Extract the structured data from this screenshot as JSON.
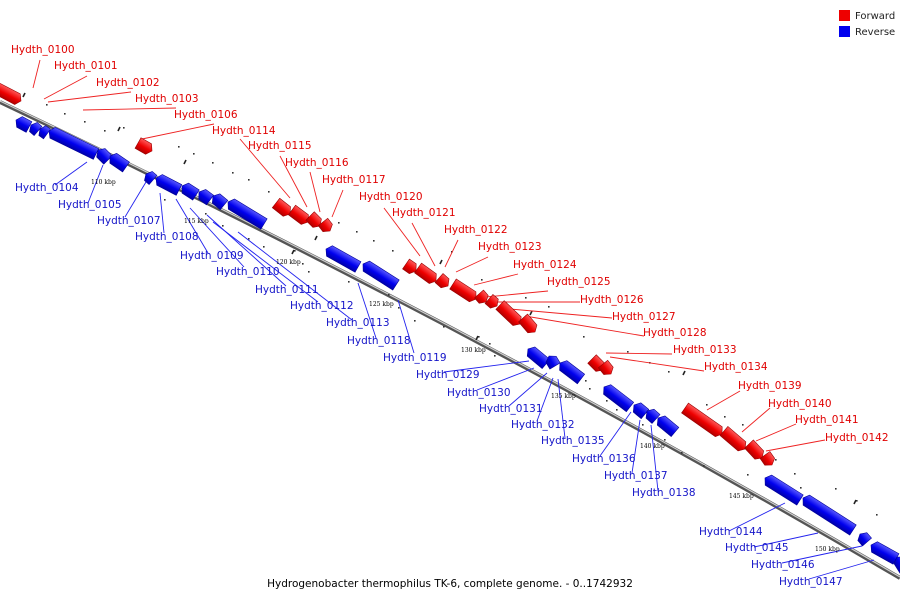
{
  "caption": "Hydrogenobacter thermophilus TK-6, complete genome. - 0..1742932",
  "legend": [
    {
      "label": "Forward",
      "color": "#ee0000"
    },
    {
      "label": "Reverse",
      "color": "#0000ee"
    }
  ],
  "scale_labels": [
    "110 kbp",
    "115 kbp",
    "120 kbp",
    "125 kbp",
    "130 kbp",
    "135 kbp",
    "140 kbp",
    "145 kbp",
    "150 kbp"
  ],
  "forward_genes": [
    "Hydth_0100",
    "Hydth_0101",
    "Hydth_0102",
    "Hydth_0103",
    "Hydth_0106",
    "Hydth_0114",
    "Hydth_0115",
    "Hydth_0116",
    "Hydth_0117",
    "Hydth_0120",
    "Hydth_0121",
    "Hydth_0122",
    "Hydth_0123",
    "Hydth_0124",
    "Hydth_0125",
    "Hydth_0126",
    "Hydth_0127",
    "Hydth_0128",
    "Hydth_0133",
    "Hydth_0134",
    "Hydth_0139",
    "Hydth_0140",
    "Hydth_0141",
    "Hydth_0142"
  ],
  "reverse_genes": [
    "Hydth_0104",
    "Hydth_0105",
    "Hydth_0107",
    "Hydth_0108",
    "Hydth_0109",
    "Hydth_0110",
    "Hydth_0111",
    "Hydth_0112",
    "Hydth_0113",
    "Hydth_0118",
    "Hydth_0119",
    "Hydth_0129",
    "Hydth_0130",
    "Hydth_0131",
    "Hydth_0132",
    "Hydth_0135",
    "Hydth_0136",
    "Hydth_0137",
    "Hydth_0138",
    "Hydth_0144",
    "Hydth_0145",
    "Hydth_0146",
    "Hydth_0147"
  ]
}
